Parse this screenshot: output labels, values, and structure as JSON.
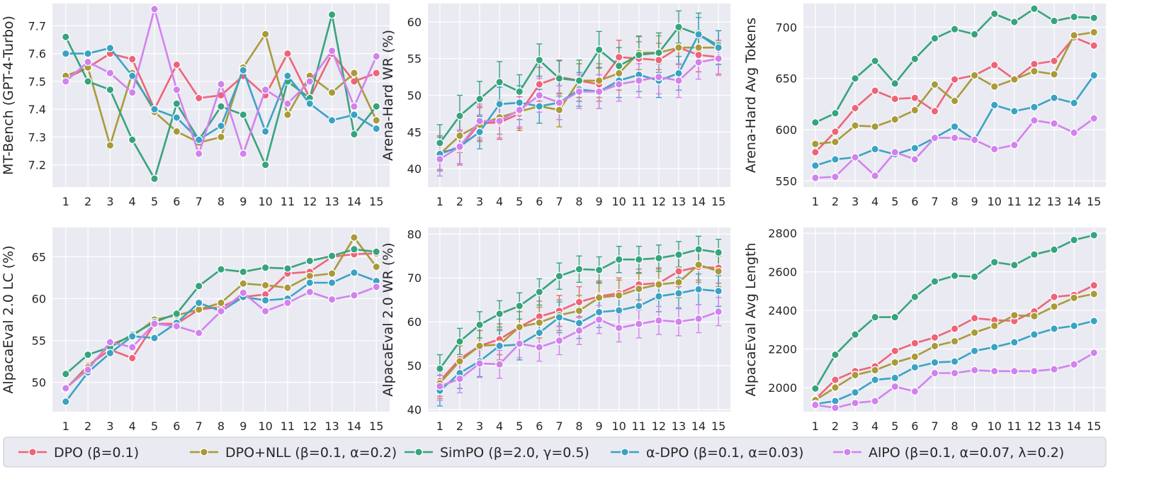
{
  "series_meta": [
    {
      "name": "DPO (β=0.1)",
      "color": "#ee6478"
    },
    {
      "name": "DPO+NLL (β=0.1, α=0.2)",
      "color": "#a99a3a"
    },
    {
      "name": "SimPO (β=2.0, γ=0.5)",
      "color": "#36a47c"
    },
    {
      "name": "α-DPO (β=0.1, α=0.03)",
      "color": "#3aa3c4"
    },
    {
      "name": "AlPO (β=0.1, α=0.07, λ=0.2)",
      "color": "#d282ee"
    }
  ],
  "legend_labels": [
    "DPO (β=0.1)",
    "DPO+NLL (β=0.1, α=0.2)",
    "SimPO (β=2.0, γ=0.5)",
    "α-DPO (β=0.1, α=0.03)",
    "AlPO (β=0.1, α=0.07, λ=0.2)"
  ],
  "chart_data": [
    {
      "type": "line",
      "ylabel": "MT-Bench (GPT-4-Turbo)",
      "x": [
        1,
        2,
        3,
        4,
        5,
        6,
        7,
        8,
        9,
        10,
        11,
        12,
        13,
        14,
        15
      ],
      "ylim": [
        7.12,
        7.78
      ],
      "yticks": [
        7.2,
        7.3,
        7.4,
        7.5,
        7.6,
        7.7
      ],
      "ytick_labels": [
        "7.2",
        "7.3",
        "7.4",
        "7.5",
        "7.6",
        "7.7"
      ],
      "error_bars": false,
      "series": [
        {
          "name": "DPO (β=0.1)",
          "values": [
            7.51,
            7.55,
            7.6,
            7.58,
            7.4,
            7.56,
            7.44,
            7.45,
            7.52,
            7.45,
            7.6,
            7.44,
            7.6,
            7.5,
            7.53
          ]
        },
        {
          "name": "DPO+NLL (β=0.1, α=0.2)",
          "values": [
            7.52,
            7.55,
            7.27,
            7.53,
            7.39,
            7.32,
            7.28,
            7.3,
            7.55,
            7.67,
            7.38,
            7.52,
            7.46,
            7.53,
            7.36
          ]
        },
        {
          "name": "SimPO (β=2.0, γ=0.5)",
          "values": [
            7.66,
            7.5,
            7.47,
            7.29,
            7.15,
            7.42,
            7.29,
            7.41,
            7.38,
            7.2,
            7.5,
            7.44,
            7.74,
            7.31,
            7.41
          ]
        },
        {
          "name": "α-DPO (β=0.1, α=0.03)",
          "values": [
            7.6,
            7.6,
            7.62,
            7.52,
            7.4,
            7.37,
            7.29,
            7.34,
            7.54,
            7.32,
            7.52,
            7.42,
            7.36,
            7.38,
            7.33
          ]
        },
        {
          "name": "AlPO (β=0.1, α=0.07, λ=0.2)",
          "values": [
            7.5,
            7.57,
            7.53,
            7.46,
            7.76,
            7.47,
            7.24,
            7.49,
            7.24,
            7.47,
            7.42,
            7.5,
            7.61,
            7.41,
            7.59
          ]
        }
      ]
    },
    {
      "type": "line",
      "ylabel": "Arena-Hard WR (%)",
      "x": [
        1,
        2,
        3,
        4,
        5,
        6,
        7,
        8,
        9,
        10,
        11,
        12,
        13,
        14,
        15
      ],
      "ylim": [
        37.5,
        62.5
      ],
      "yticks": [
        40,
        45,
        50,
        55,
        60
      ],
      "ytick_labels": [
        "40",
        "45",
        "50",
        "55",
        "60"
      ],
      "error_bars": true,
      "series": [
        {
          "name": "DPO (β=0.1)",
          "values": [
            42.2,
            42.8,
            46.2,
            46.3,
            47.5,
            51.5,
            52.5,
            52.0,
            51.5,
            55.2,
            55.0,
            54.8,
            56.5,
            55.5,
            55.2
          ],
          "err": [
            2.3,
            2.3,
            2.3,
            2.3,
            2.3,
            2.3,
            2.3,
            2.3,
            2.3,
            2.3,
            2.3,
            2.3,
            2.3,
            2.3,
            2.3
          ]
        },
        {
          "name": "DPO+NLL (β=0.1, α=0.2)",
          "values": [
            42.0,
            44.5,
            46.0,
            47.0,
            47.8,
            48.5,
            48.0,
            52.0,
            52.0,
            53.0,
            55.8,
            55.8,
            56.5,
            56.5,
            56.5
          ],
          "err": [
            2.3,
            2.3,
            2.3,
            2.3,
            2.3,
            2.3,
            2.3,
            2.3,
            2.3,
            2.3,
            2.3,
            2.3,
            2.3,
            2.3,
            2.3
          ]
        },
        {
          "name": "SimPO (β=2.0, γ=0.5)",
          "values": [
            43.5,
            47.2,
            49.5,
            51.8,
            50.5,
            54.8,
            52.3,
            52.0,
            56.2,
            54.0,
            55.5,
            55.8,
            59.3,
            58.3,
            56.8
          ],
          "err": [
            2.5,
            2.8,
            2.4,
            2.8,
            2.3,
            2.2,
            2.4,
            2.8,
            2.5,
            2.5,
            2.5,
            2.7,
            2.2,
            2.9,
            2.0
          ]
        },
        {
          "name": "α-DPO (β=0.1, α=0.03)",
          "values": [
            42.0,
            43.0,
            45.0,
            48.8,
            49.0,
            48.5,
            49.0,
            50.8,
            50.5,
            52.0,
            52.8,
            52.0,
            53.0,
            58.3,
            56.5
          ],
          "err": [
            2.3,
            2.3,
            2.3,
            2.3,
            2.3,
            2.3,
            2.3,
            2.3,
            2.3,
            2.3,
            2.3,
            2.3,
            2.3,
            2.3,
            2.3
          ]
        },
        {
          "name": "AlPO (β=0.1, α=0.07, λ=0.2)",
          "values": [
            41.3,
            43.0,
            46.5,
            46.5,
            48.0,
            50.0,
            49.0,
            50.5,
            50.5,
            51.5,
            52.0,
            52.5,
            52.0,
            54.5,
            55.0
          ],
          "err": [
            2.3,
            2.3,
            2.3,
            2.3,
            2.3,
            2.3,
            2.3,
            2.3,
            2.3,
            2.3,
            2.3,
            2.3,
            2.3,
            2.3,
            2.3
          ]
        }
      ]
    },
    {
      "type": "line",
      "ylabel": "Arena-Hard Avg Tokens",
      "x": [
        1,
        2,
        3,
        4,
        5,
        6,
        7,
        8,
        9,
        10,
        11,
        12,
        13,
        14,
        15
      ],
      "ylim": [
        544,
        723
      ],
      "yticks": [
        550,
        600,
        650,
        700
      ],
      "ytick_labels": [
        "550",
        "600",
        "650",
        "700"
      ],
      "error_bars": false,
      "series": [
        {
          "name": "DPO (β=0.1)",
          "values": [
            578,
            598,
            621,
            638,
            630,
            631,
            618,
            649,
            653,
            663,
            649,
            664,
            667,
            690,
            682
          ]
        },
        {
          "name": "DPO+NLL (β=0.1, α=0.2)",
          "values": [
            586,
            588,
            604,
            603,
            610,
            619,
            644,
            628,
            653,
            642,
            649,
            657,
            654,
            692,
            695
          ]
        },
        {
          "name": "SimPO (β=2.0, γ=0.5)",
          "values": [
            607,
            616,
            650,
            667,
            645,
            669,
            689,
            698,
            693,
            713,
            705,
            718,
            706,
            710,
            709
          ]
        },
        {
          "name": "α-DPO (β=0.1, α=0.03)",
          "values": [
            565,
            571,
            573,
            581,
            576,
            582,
            592,
            603,
            590,
            624,
            618,
            622,
            631,
            626,
            653
          ]
        },
        {
          "name": "AlPO (β=0.1, α=0.07, λ=0.2)",
          "values": [
            553,
            554,
            573,
            555,
            578,
            571,
            592,
            592,
            590,
            581,
            585,
            609,
            606,
            597,
            611
          ]
        }
      ]
    },
    {
      "type": "line",
      "ylabel": "AlpacaEval 2.0 LC (%)",
      "x": [
        1,
        2,
        3,
        4,
        5,
        6,
        7,
        8,
        9,
        10,
        11,
        12,
        13,
        14,
        15
      ],
      "ylim": [
        46.5,
        68.5
      ],
      "yticks": [
        50,
        55,
        60,
        65
      ],
      "ytick_labels": [
        "50",
        "55",
        "60",
        "65"
      ],
      "error_bars": false,
      "series": [
        {
          "name": "DPO (β=0.1)",
          "values": [
            49.2,
            52.0,
            53.9,
            52.9,
            57.0,
            57.0,
            58.7,
            59.0,
            60.2,
            60.5,
            63.0,
            63.2,
            65.0,
            65.3,
            65.4
          ]
        },
        {
          "name": "DPO+NLL (β=0.1, α=0.2)",
          "values": [
            49.3,
            51.8,
            54.5,
            55.5,
            57.5,
            58.0,
            58.7,
            59.5,
            61.8,
            61.6,
            61.3,
            62.7,
            63.0,
            67.3,
            63.8
          ]
        },
        {
          "name": "SimPO (β=2.0, γ=0.5)",
          "values": [
            51.0,
            53.3,
            54.2,
            55.7,
            57.2,
            58.2,
            61.5,
            63.5,
            63.2,
            63.7,
            63.6,
            64.5,
            65.1,
            65.9,
            65.6
          ]
        },
        {
          "name": "α-DPO (β=0.1, α=0.03)",
          "values": [
            47.7,
            51.2,
            53.5,
            55.5,
            55.3,
            57.1,
            59.5,
            58.5,
            60.2,
            59.8,
            60.0,
            61.9,
            61.9,
            63.1,
            62.1
          ]
        },
        {
          "name": "AlPO (β=0.1, α=0.07, λ=0.2)",
          "values": [
            49.3,
            51.5,
            54.8,
            54.2,
            57.0,
            56.7,
            55.9,
            58.5,
            60.7,
            58.5,
            59.5,
            60.8,
            59.9,
            60.4,
            61.4
          ]
        }
      ]
    },
    {
      "type": "line",
      "ylabel": "AlpacaEval 2.0 WR (%)",
      "x": [
        1,
        2,
        3,
        4,
        5,
        6,
        7,
        8,
        9,
        10,
        11,
        12,
        13,
        14,
        15
      ],
      "ylim": [
        39.5,
        81.5
      ],
      "yticks": [
        40,
        50,
        60,
        70,
        80
      ],
      "ytick_labels": [
        "40",
        "50",
        "60",
        "70",
        "80"
      ],
      "error_bars": true,
      "series": [
        {
          "name": "DPO (β=0.1)",
          "values": [
            46.5,
            51.5,
            54.5,
            56.0,
            58.8,
            61.2,
            62.5,
            64.5,
            65.8,
            66.5,
            68.5,
            68.8,
            71.5,
            72.5,
            72.3
          ],
          "err": [
            3.5,
            3.5,
            3.5,
            3.5,
            3.5,
            3.5,
            3.5,
            3.5,
            3.5,
            3.5,
            3.5,
            3.5,
            3.5,
            3.5,
            3.5
          ]
        },
        {
          "name": "DPO+NLL (β=0.1, α=0.2)",
          "values": [
            46.0,
            51.0,
            54.5,
            54.8,
            58.8,
            59.8,
            61.5,
            62.5,
            65.5,
            66.0,
            67.5,
            68.5,
            69.0,
            73.0,
            71.5
          ],
          "err": [
            3.5,
            3.5,
            3.5,
            3.5,
            3.5,
            3.5,
            3.5,
            3.5,
            3.5,
            3.5,
            3.5,
            3.5,
            3.5,
            3.5,
            3.5
          ]
        },
        {
          "name": "SimPO (β=2.0, γ=0.5)",
          "values": [
            49.3,
            55.5,
            59.3,
            61.8,
            63.6,
            66.8,
            70.4,
            72.0,
            71.8,
            74.2,
            74.2,
            74.5,
            75.3,
            76.5,
            75.8
          ],
          "err": [
            3.2,
            3.0,
            3.0,
            3.0,
            3.0,
            3.0,
            3.0,
            3.0,
            3.0,
            3.0,
            3.0,
            3.0,
            3.0,
            3.0,
            3.0
          ]
        },
        {
          "name": "α-DPO (β=0.1, α=0.03)",
          "values": [
            44.3,
            48.3,
            51.0,
            54.5,
            54.8,
            57.5,
            61.0,
            59.7,
            62.2,
            62.6,
            63.6,
            65.8,
            66.5,
            67.4,
            67.0
          ],
          "err": [
            3.5,
            3.5,
            3.5,
            3.5,
            3.5,
            3.5,
            3.5,
            3.5,
            3.5,
            3.5,
            3.5,
            3.5,
            3.5,
            3.5,
            3.5
          ]
        },
        {
          "name": "AlPO (β=0.1, α=0.07, λ=0.2)",
          "values": [
            45.3,
            47.0,
            50.5,
            50.3,
            55.0,
            54.2,
            55.7,
            58.0,
            60.5,
            58.6,
            59.5,
            60.3,
            60.0,
            60.7,
            62.3
          ],
          "err": [
            3.2,
            3.2,
            3.2,
            3.2,
            3.2,
            3.2,
            3.2,
            3.2,
            3.2,
            3.2,
            3.2,
            3.2,
            3.2,
            3.2,
            3.2
          ]
        }
      ]
    },
    {
      "type": "line",
      "ylabel": "AlpacaEval Avg Length",
      "x": [
        1,
        2,
        3,
        4,
        5,
        6,
        7,
        8,
        9,
        10,
        11,
        12,
        13,
        14,
        15
      ],
      "ylim": [
        1875,
        2830
      ],
      "yticks": [
        2000,
        2200,
        2400,
        2600,
        2800
      ],
      "ytick_labels": [
        "2000",
        "2200",
        "2400",
        "2600",
        "2800"
      ],
      "error_bars": false,
      "series": [
        {
          "name": "DPO (β=0.1)",
          "values": [
            1940,
            2040,
            2085,
            2110,
            2190,
            2230,
            2260,
            2305,
            2360,
            2350,
            2345,
            2395,
            2470,
            2480,
            2530
          ]
        },
        {
          "name": "DPO+NLL (β=0.1, α=0.2)",
          "values": [
            1935,
            2000,
            2065,
            2090,
            2130,
            2160,
            2215,
            2240,
            2285,
            2320,
            2375,
            2370,
            2420,
            2465,
            2485
          ]
        },
        {
          "name": "SimPO (β=2.0, γ=0.5)",
          "values": [
            1995,
            2170,
            2275,
            2365,
            2365,
            2470,
            2550,
            2580,
            2575,
            2650,
            2635,
            2690,
            2715,
            2765,
            2790
          ]
        },
        {
          "name": "α-DPO (β=0.1, α=0.03)",
          "values": [
            1915,
            1930,
            1975,
            2040,
            2050,
            2105,
            2130,
            2135,
            2190,
            2210,
            2235,
            2275,
            2305,
            2320,
            2345
          ]
        },
        {
          "name": "AlPO (β=0.1, α=0.07, λ=0.2)",
          "values": [
            1910,
            1895,
            1920,
            1930,
            2005,
            1980,
            2075,
            2075,
            2090,
            2085,
            2085,
            2085,
            2095,
            2120,
            2180
          ]
        }
      ]
    }
  ]
}
